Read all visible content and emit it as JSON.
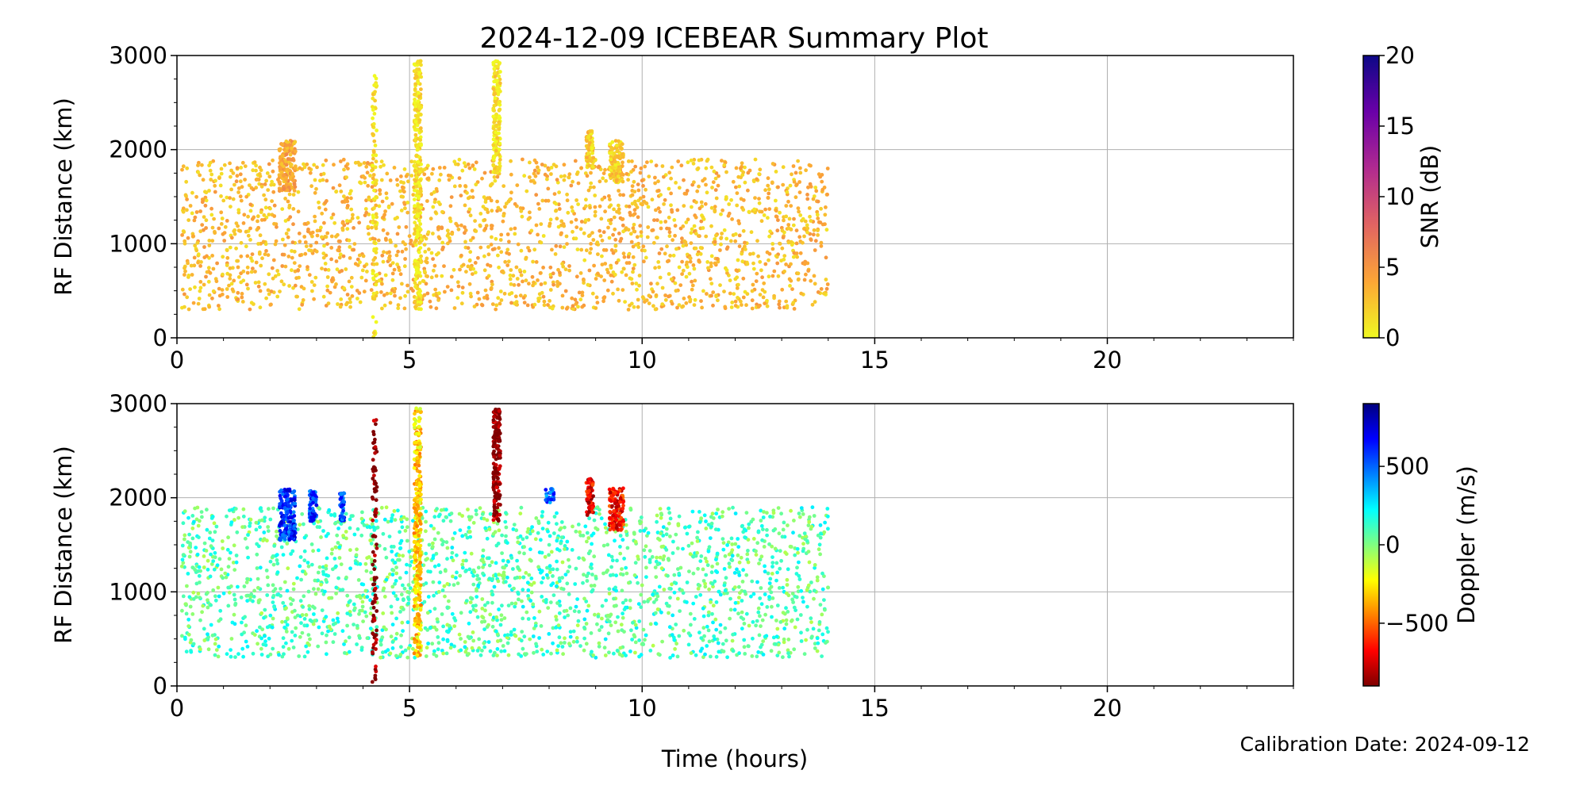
{
  "figure": {
    "title": "2024-12-09 ICEBEAR Summary Plot",
    "xlabel": "Time (hours)",
    "footer": "Calibration Date: 2024-09-12"
  },
  "chart_data": [
    {
      "type": "scatter",
      "name": "snr-panel",
      "title": "2024-12-09 ICEBEAR Summary Plot",
      "xlabel": "Time (hours)",
      "ylabel": "RF Distance (km)",
      "xlim": [
        0,
        24
      ],
      "ylim": [
        0,
        3000
      ],
      "xticks": [
        0,
        5,
        10,
        15,
        20
      ],
      "yticks": [
        0,
        1000,
        2000,
        3000
      ],
      "grid": true,
      "colorbar": {
        "label": "SNR (dB)",
        "range": [
          0,
          20
        ],
        "ticks": [
          0,
          5,
          10,
          15,
          20
        ],
        "colormap": "plasma_r",
        "colors": [
          "#f0f921",
          "#fca636",
          "#e16462",
          "#b12a90",
          "#6a00a8",
          "#0d0887"
        ]
      },
      "scatter_clusters": [
        {
          "x": [
            0.1,
            14.0
          ],
          "y": [
            300,
            1900
          ],
          "count": 2200,
          "typical_value": 3
        },
        {
          "x": [
            2.2,
            2.55
          ],
          "y": [
            1550,
            2100
          ],
          "count": 160,
          "typical_value": 4
        },
        {
          "x": [
            4.2,
            4.3
          ],
          "y": [
            0,
            2850
          ],
          "count": 90,
          "typical_value": 1
        },
        {
          "x": [
            5.1,
            5.25
          ],
          "y": [
            300,
            2950
          ],
          "count": 300,
          "typical_value": 1
        },
        {
          "x": [
            6.8,
            6.95
          ],
          "y": [
            1750,
            2950
          ],
          "count": 180,
          "typical_value": 1
        },
        {
          "x": [
            8.8,
            8.95
          ],
          "y": [
            1800,
            2200
          ],
          "count": 70,
          "typical_value": 2
        },
        {
          "x": [
            9.3,
            9.6
          ],
          "y": [
            1650,
            2100
          ],
          "count": 120,
          "typical_value": 2
        }
      ]
    },
    {
      "type": "scatter",
      "name": "doppler-panel",
      "xlabel": "Time (hours)",
      "ylabel": "RF Distance (km)",
      "xlim": [
        0,
        24
      ],
      "ylim": [
        0,
        3000
      ],
      "xticks": [
        0,
        5,
        10,
        15,
        20
      ],
      "yticks": [
        0,
        1000,
        2000,
        3000
      ],
      "grid": true,
      "colorbar": {
        "label": "Doppler (m/s)",
        "range": [
          -900,
          900
        ],
        "ticks": [
          -500,
          0,
          500
        ],
        "tick_labels": [
          "−500",
          "0",
          "500"
        ],
        "colormap": "jet_r",
        "colors": [
          "#7f0000",
          "#ff0000",
          "#ff8000",
          "#ffff00",
          "#80ff80",
          "#00ffff",
          "#0080ff",
          "#0000ff",
          "#00007f"
        ]
      },
      "scatter_clusters": [
        {
          "x": [
            0.1,
            14.0
          ],
          "y": [
            300,
            1900
          ],
          "count": 2200,
          "typical_value": 80
        },
        {
          "x": [
            2.2,
            2.55
          ],
          "y": [
            1550,
            2100
          ],
          "count": 160,
          "typical_value": 600
        },
        {
          "x": [
            2.85,
            3.0
          ],
          "y": [
            1750,
            2080
          ],
          "count": 60,
          "typical_value": 550
        },
        {
          "x": [
            3.5,
            3.6
          ],
          "y": [
            1750,
            2050
          ],
          "count": 40,
          "typical_value": 550
        },
        {
          "x": [
            4.2,
            4.3
          ],
          "y": [
            0,
            2850
          ],
          "count": 90,
          "typical_value": -900
        },
        {
          "x": [
            5.1,
            5.25
          ],
          "y": [
            300,
            2950
          ],
          "count": 300,
          "typical_value": -300
        },
        {
          "x": [
            6.8,
            6.95
          ],
          "y": [
            1750,
            2950
          ],
          "count": 180,
          "typical_value": -900
        },
        {
          "x": [
            8.8,
            8.95
          ],
          "y": [
            1800,
            2200
          ],
          "count": 70,
          "typical_value": -700
        },
        {
          "x": [
            9.3,
            9.6
          ],
          "y": [
            1650,
            2100
          ],
          "count": 120,
          "typical_value": -650
        },
        {
          "x": [
            7.9,
            8.1
          ],
          "y": [
            1950,
            2100
          ],
          "count": 25,
          "typical_value": 500
        }
      ]
    }
  ]
}
